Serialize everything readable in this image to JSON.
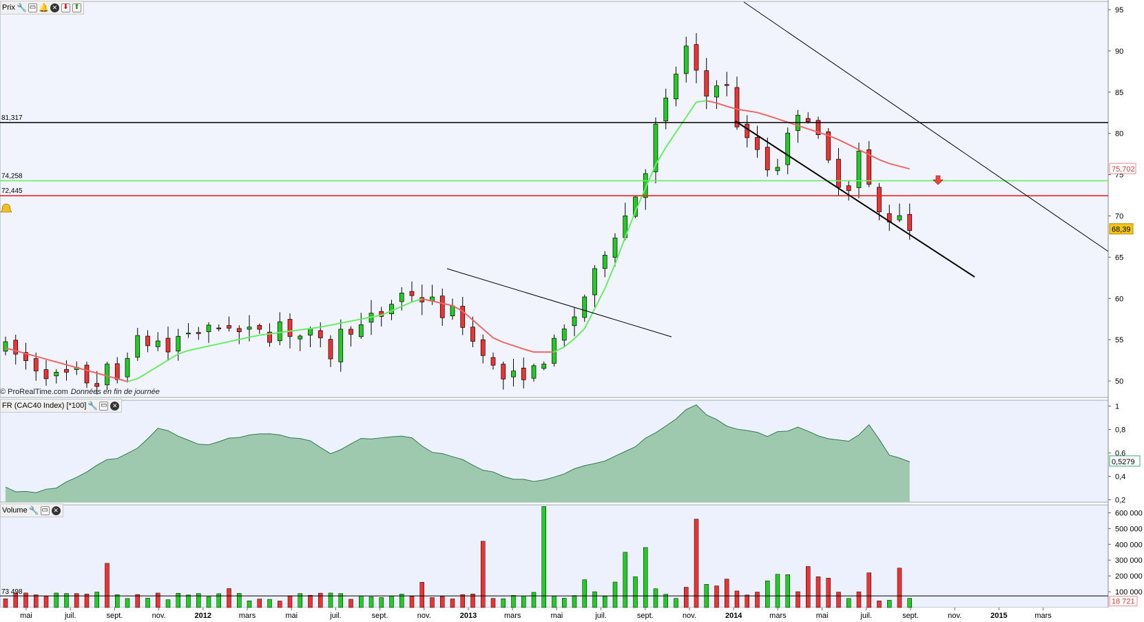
{
  "panels": {
    "price": {
      "title": "Prix"
    },
    "ratio": {
      "title": "FR (CAC40 Index) [*100]"
    },
    "volume": {
      "title": "Volume"
    }
  },
  "watermark": {
    "source": "© ProRealTime.com",
    "note": "Données en fin de journée"
  },
  "colors": {
    "up": "#22cc22",
    "down": "#ee3333",
    "ma_up": "#66ee66",
    "ma_down": "#ee6666",
    "support_line": "#000000",
    "green_level": "#66ee66",
    "red_level": "#ee2222",
    "area_fill": "#9ec9ae",
    "panel_bg": "#edf1fd"
  },
  "chart_data": [
    {
      "type": "candlestick",
      "panel": "price",
      "y_ticks": [
        "95",
        "90",
        "85",
        "80",
        "75",
        "70",
        "65",
        "60",
        "55",
        "50"
      ],
      "y_range": [
        48,
        96
      ],
      "x_labels": [
        "mai",
        "juil.",
        "sept.",
        "nov.",
        "2012",
        "mars",
        "mai",
        "juil.",
        "sept.",
        "nov.",
        "2013",
        "mars",
        "mai",
        "juil.",
        "sept.",
        "nov.",
        "2014",
        "mars",
        "mai",
        "juil.",
        "sept.",
        "nov.",
        "2015",
        "mars"
      ],
      "levels": [
        {
          "label": "81,317",
          "value": 81.317,
          "color": "#000000"
        },
        {
          "label": "74,258",
          "value": 74.258,
          "color": "#66ee66"
        },
        {
          "label": "72,445",
          "value": 72.445,
          "color": "#ee2222"
        }
      ],
      "last_price": "68,39",
      "ma_value": "75,702",
      "anchors": [
        [
          0,
          54
        ],
        [
          2,
          52
        ],
        [
          4,
          50.5
        ],
        [
          6,
          51
        ],
        [
          7,
          49
        ],
        [
          8,
          51.5
        ],
        [
          9,
          50
        ],
        [
          10,
          55
        ],
        [
          11,
          54.5
        ],
        [
          12,
          55
        ],
        [
          13,
          53.5
        ],
        [
          14,
          56
        ],
        [
          16,
          56
        ],
        [
          18,
          57
        ],
        [
          19,
          55
        ],
        [
          20,
          57
        ],
        [
          21,
          55.5
        ],
        [
          22,
          57.5
        ],
        [
          23,
          55
        ],
        [
          24,
          56
        ],
        [
          26,
          53
        ],
        [
          27,
          57
        ],
        [
          28,
          56
        ],
        [
          29,
          57.5
        ],
        [
          30,
          58
        ],
        [
          31,
          60
        ],
        [
          32,
          61
        ],
        [
          33,
          60
        ],
        [
          34,
          59.5
        ],
        [
          35,
          58
        ],
        [
          36,
          58.5
        ],
        [
          37,
          55
        ],
        [
          38,
          54
        ],
        [
          39,
          51
        ],
        [
          40,
          50
        ],
        [
          41,
          51
        ],
        [
          42,
          51
        ],
        [
          43,
          53
        ],
        [
          44,
          55
        ],
        [
          45,
          57
        ],
        [
          46,
          60
        ],
        [
          47,
          63
        ],
        [
          48,
          67
        ],
        [
          49,
          69
        ],
        [
          50,
          72
        ],
        [
          51,
          76
        ],
        [
          52,
          82
        ],
        [
          53,
          85
        ],
        [
          54,
          91
        ],
        [
          55,
          87
        ],
        [
          56,
          84
        ],
        [
          57,
          88
        ],
        [
          58,
          82
        ],
        [
          59,
          79
        ],
        [
          60,
          78
        ],
        [
          61,
          75
        ],
        [
          62,
          78
        ],
        [
          63,
          83
        ],
        [
          64,
          82
        ],
        [
          65,
          78
        ],
        [
          66,
          75
        ],
        [
          67,
          73
        ],
        [
          68,
          78
        ],
        [
          69,
          72
        ],
        [
          70,
          69
        ],
        [
          71,
          71
        ],
        [
          72,
          68.4
        ]
      ],
      "moving_average": [
        [
          0,
          54
        ],
        [
          10,
          49.8
        ],
        [
          14,
          53.5
        ],
        [
          20,
          55.5
        ],
        [
          25,
          56.5
        ],
        [
          30,
          58
        ],
        [
          33,
          60
        ],
        [
          36,
          59
        ],
        [
          39,
          55
        ],
        [
          42,
          53.5
        ],
        [
          44,
          53.5
        ],
        [
          46,
          56
        ],
        [
          48,
          62
        ],
        [
          50,
          70
        ],
        [
          52,
          77
        ],
        [
          54,
          81.5
        ],
        [
          55,
          83.8
        ],
        [
          56,
          84
        ],
        [
          58,
          83
        ],
        [
          60,
          82.5
        ],
        [
          62,
          81.5
        ],
        [
          64,
          80.5
        ],
        [
          66,
          79.5
        ],
        [
          68,
          78
        ],
        [
          70,
          76.5
        ],
        [
          72,
          75.7
        ]
      ]
    },
    {
      "type": "area",
      "panel": "ratio",
      "title": "FR (CAC40 Index) [*100]",
      "y_ticks": [
        "1",
        "0,8",
        "0,6",
        "0,4",
        "0,2"
      ],
      "y_range": [
        0.18,
        1.05
      ],
      "last_value": "0,5279",
      "series": [
        [
          0,
          0.3
        ],
        [
          2,
          0.25
        ],
        [
          4,
          0.3
        ],
        [
          6,
          0.4
        ],
        [
          8,
          0.53
        ],
        [
          10,
          0.6
        ],
        [
          12,
          0.8
        ],
        [
          14,
          0.75
        ],
        [
          16,
          0.65
        ],
        [
          18,
          0.72
        ],
        [
          20,
          0.78
        ],
        [
          22,
          0.75
        ],
        [
          24,
          0.72
        ],
        [
          26,
          0.6
        ],
        [
          28,
          0.72
        ],
        [
          30,
          0.72
        ],
        [
          32,
          0.75
        ],
        [
          34,
          0.6
        ],
        [
          36,
          0.55
        ],
        [
          38,
          0.45
        ],
        [
          40,
          0.4
        ],
        [
          42,
          0.35
        ],
        [
          44,
          0.4
        ],
        [
          46,
          0.5
        ],
        [
          48,
          0.55
        ],
        [
          50,
          0.65
        ],
        [
          52,
          0.8
        ],
        [
          54,
          0.95
        ],
        [
          55,
          1.0
        ],
        [
          57,
          0.85
        ],
        [
          59,
          0.78
        ],
        [
          61,
          0.75
        ],
        [
          63,
          0.82
        ],
        [
          65,
          0.75
        ],
        [
          67,
          0.68
        ],
        [
          69,
          0.85
        ],
        [
          70,
          0.6
        ],
        [
          72,
          0.53
        ]
      ]
    },
    {
      "type": "bar",
      "panel": "volume",
      "title": "Volume",
      "y_ticks": [
        "600 000",
        "500 000",
        "400 000",
        "300 000",
        "200 000",
        "100 000"
      ],
      "y_range": [
        0,
        650000
      ],
      "reference_level": "73 498",
      "last_value": "18 721",
      "spikes": [
        [
          8,
          280000
        ],
        [
          18,
          120000
        ],
        [
          33,
          160000
        ],
        [
          38,
          420000
        ],
        [
          43,
          640000
        ],
        [
          49,
          350000
        ],
        [
          51,
          380000
        ],
        [
          55,
          560000
        ],
        [
          64,
          260000
        ],
        [
          69,
          220000
        ],
        [
          71,
          250000
        ]
      ]
    }
  ]
}
